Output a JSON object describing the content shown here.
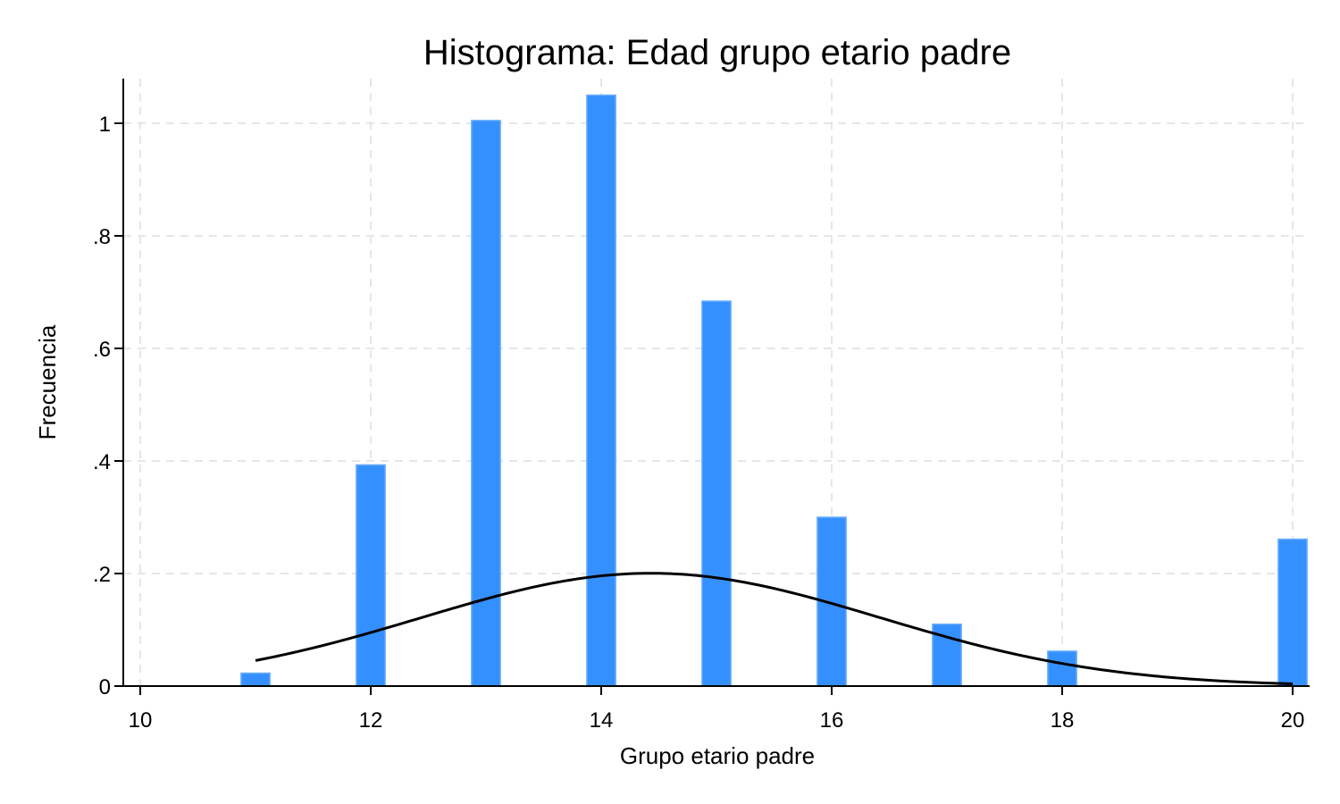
{
  "chart_data": {
    "type": "bar",
    "title": "Histograma: Edad grupo etario padre",
    "xlabel": "Grupo etario padre",
    "ylabel": "Frecuencia",
    "xlim": [
      10,
      20
    ],
    "ylim": [
      0,
      1.05
    ],
    "xticks": [
      10,
      12,
      14,
      16,
      18,
      20
    ],
    "xtick_labels": [
      "10",
      "12",
      "14",
      "16",
      "18",
      "20"
    ],
    "yticks": [
      0,
      0.2,
      0.4,
      0.6,
      0.8,
      1
    ],
    "ytick_labels": [
      "0",
      ".2",
      ".4",
      ".6",
      ".8",
      "1"
    ],
    "grid": true,
    "bar_width": 0.25,
    "bars": [
      {
        "x": 11,
        "value": 0.023
      },
      {
        "x": 12,
        "value": 0.393
      },
      {
        "x": 13,
        "value": 1.005
      },
      {
        "x": 14,
        "value": 1.05
      },
      {
        "x": 15,
        "value": 0.684
      },
      {
        "x": 16,
        "value": 0.3
      },
      {
        "x": 17,
        "value": 0.11
      },
      {
        "x": 18,
        "value": 0.062
      },
      {
        "x": 20,
        "value": 0.261
      }
    ],
    "normal_curve": {
      "mean": 14.43,
      "sd": 1.99,
      "x_range": [
        11,
        20
      ]
    },
    "colors": {
      "bar_fill": "#3590ff",
      "bar_edge": "#6aaefc",
      "curve": "#000000",
      "grid": "#e6e6e6",
      "axis": "#000000"
    }
  }
}
